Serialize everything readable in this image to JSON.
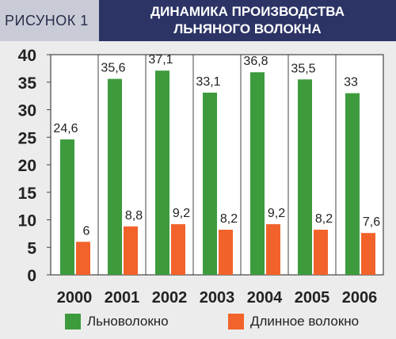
{
  "header": {
    "figure_label": "РИСУНОК 1",
    "title_line1": "ДИНАМИКА ПРОИЗВОДСТВА",
    "title_line2": "ЛЬНЯНОГО ВОЛОКНА"
  },
  "colors": {
    "green": "#3d9b3e",
    "orange": "#f2632b",
    "title_bg": "#2c3466",
    "label_bg": "#c9cbd6",
    "plot_bg": "#ffffff"
  },
  "chart_data": {
    "type": "bar",
    "title": "ДИНАМИКА ПРОИЗВОДСТВА ЛЬНЯНОГО ВОЛОКНА",
    "categories": [
      "2000",
      "2001",
      "2002",
      "2003",
      "2004",
      "2005",
      "2006"
    ],
    "series": [
      {
        "name": "Льноволокно",
        "values": [
          24.6,
          35.6,
          37.1,
          33.1,
          36.8,
          35.5,
          33
        ],
        "labels": [
          "24,6",
          "35,6",
          "37,1",
          "33,1",
          "36,8",
          "35,5",
          "33"
        ]
      },
      {
        "name": "Длинное волокно",
        "values": [
          6,
          8.8,
          9.2,
          8.2,
          9.2,
          8.2,
          7.6
        ],
        "labels": [
          "6",
          "8,8",
          "9,2",
          "8,2",
          "9,2",
          "8,2",
          "7,6"
        ]
      }
    ],
    "ylim": [
      0,
      40
    ],
    "yticks": [
      "0",
      "5",
      "10",
      "15",
      "20",
      "25",
      "30",
      "35",
      "40"
    ],
    "xlabel": "",
    "ylabel": "",
    "grid": true,
    "legend_position": "bottom"
  }
}
